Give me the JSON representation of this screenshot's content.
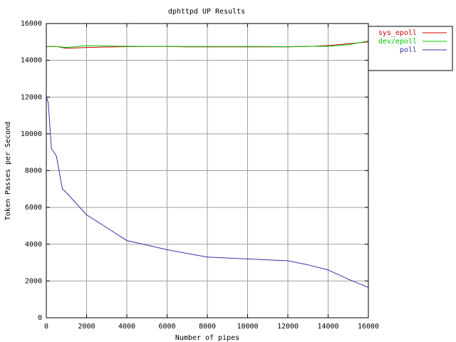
{
  "chart_data": {
    "type": "line",
    "title": "dphttpd UP Results",
    "xlabel": "Number of pipes",
    "ylabel": "Token Passes per Second",
    "xlim": [
      0,
      16000
    ],
    "ylim": [
      0,
      16000
    ],
    "x_ticks": [
      0,
      2000,
      4000,
      6000,
      8000,
      10000,
      12000,
      14000,
      16000
    ],
    "y_ticks": [
      0,
      2000,
      4000,
      6000,
      8000,
      10000,
      12000,
      14000,
      16000
    ],
    "grid": true,
    "legend_position": "top-right",
    "series": [
      {
        "name": "sys_epoll",
        "color": "#cc0000",
        "x": [
          0,
          500,
          1000,
          2000,
          3000,
          4000,
          5000,
          6000,
          7000,
          8000,
          9000,
          10000,
          11000,
          12000,
          13000,
          14000,
          15000,
          16000
        ],
        "y": [
          14750,
          14750,
          14650,
          14700,
          14720,
          14740,
          14750,
          14750,
          14730,
          14730,
          14730,
          14730,
          14730,
          14730,
          14750,
          14800,
          14900,
          15000
        ]
      },
      {
        "name": "dev/epoll",
        "color": "#00cc00",
        "x": [
          0,
          500,
          1000,
          2000,
          3000,
          4000,
          5000,
          6000,
          7000,
          8000,
          9000,
          10000,
          11000,
          12000,
          13000,
          14000,
          15000,
          16000
        ],
        "y": [
          14750,
          14750,
          14700,
          14800,
          14780,
          14760,
          14760,
          14760,
          14750,
          14750,
          14750,
          14750,
          14750,
          14740,
          14760,
          14760,
          14850,
          15050
        ]
      },
      {
        "name": "poll",
        "color": "#3333aa",
        "x": [
          0,
          100,
          250,
          500,
          800,
          1000,
          2000,
          3000,
          4000,
          5000,
          6000,
          7000,
          8000,
          9000,
          10000,
          11000,
          12000,
          13000,
          14000,
          15000,
          16000
        ],
        "y": [
          12000,
          11700,
          9200,
          8800,
          7000,
          6800,
          5600,
          4900,
          4200,
          3950,
          3700,
          3500,
          3300,
          3250,
          3200,
          3150,
          3100,
          2880,
          2600,
          2100,
          1650
        ]
      }
    ]
  }
}
